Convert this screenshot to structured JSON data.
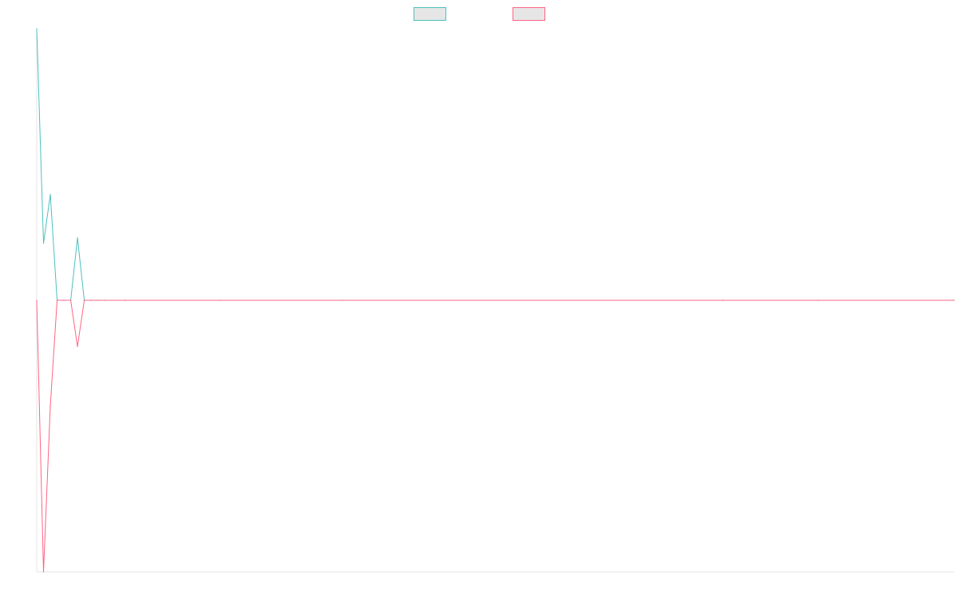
{
  "chart_data": {
    "type": "line",
    "title": "",
    "xlabel": "",
    "ylabel": "",
    "grid": false,
    "legend_position": "top",
    "x_points": 136,
    "ylim": [
      -1,
      1
    ],
    "series": [
      {
        "color": "#4bc0c0",
        "legend_text": "",
        "points": [
          [
            0,
            1.0
          ],
          [
            1,
            0.21
          ],
          [
            2,
            0.39
          ],
          [
            3,
            0.0
          ],
          [
            4,
            0.0
          ],
          [
            5,
            0.0
          ],
          [
            6,
            0.23
          ],
          [
            7,
            0.0
          ],
          [
            8,
            0.0
          ],
          [
            9,
            0.0
          ],
          [
            10,
            0.0
          ],
          [
            13,
            0.0
          ],
          [
            27,
            0.0
          ],
          [
            45,
            0.0
          ],
          [
            101,
            0.0
          ],
          [
            115,
            0.0
          ],
          [
            135,
            0.0
          ]
        ]
      },
      {
        "color": "#ff6384",
        "legend_text": "",
        "points": [
          [
            0,
            0.0
          ],
          [
            1,
            -1.0
          ],
          [
            2,
            -0.39
          ],
          [
            3,
            0.0
          ],
          [
            4,
            0.0
          ],
          [
            5,
            0.0
          ],
          [
            6,
            -0.17
          ],
          [
            7,
            0.0
          ],
          [
            8,
            0.0
          ],
          [
            9,
            0.0
          ],
          [
            10,
            0.0
          ],
          [
            13,
            0.0
          ],
          [
            27,
            0.0
          ],
          [
            45,
            0.0
          ],
          [
            101,
            0.0
          ],
          [
            115,
            0.0
          ],
          [
            135,
            0.0
          ]
        ]
      }
    ]
  }
}
